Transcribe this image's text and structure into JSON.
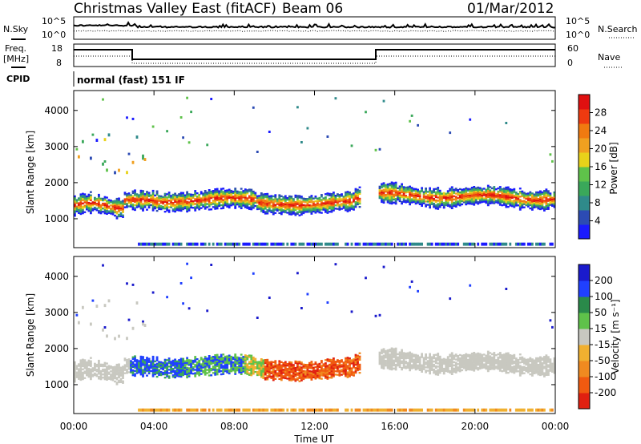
{
  "header": {
    "title": "Christmas Valley East (fitACF)",
    "beam": "Beam 06",
    "date": "01/Mar/2012"
  },
  "panels": {
    "nsky": {
      "left_label": "N.Sky",
      "right_label": "N.Search",
      "left_ticks": [
        "10^5",
        "10^0"
      ],
      "right_ticks": [
        "10^5",
        "10^0"
      ]
    },
    "freq": {
      "left_label_1": "Freq.",
      "left_label_2": "[MHz]",
      "right_label": "Nave",
      "left_ticks": [
        "18",
        "8"
      ],
      "right_ticks": [
        "60",
        "0"
      ]
    },
    "cpid": {
      "label": "CPID",
      "text": "normal (fast) 151 IF"
    }
  },
  "chart_data": [
    {
      "type": "heatmap",
      "name": "power",
      "ylabel": "Slant Range [km]",
      "xlabel": "Time UT",
      "x_ticks": [
        "00:00",
        "04:00",
        "08:00",
        "12:00",
        "16:00",
        "20:00",
        "00:00"
      ],
      "y_ticks": [
        1000,
        2000,
        3000,
        4000
      ],
      "ylim": [
        200,
        4550
      ],
      "xlim_hours": [
        0,
        24
      ],
      "colorbar": {
        "label": "Power [dB]",
        "ticks": [
          4,
          8,
          12,
          16,
          20,
          24,
          28
        ],
        "range": [
          0,
          32
        ],
        "colors": [
          "#1a1aff",
          "#2c4bb3",
          "#2f8a8a",
          "#3aa85a",
          "#5fc24a",
          "#e8d21a",
          "#f0a020",
          "#f07a10",
          "#ee3a10",
          "#e01010"
        ]
      }
    },
    {
      "type": "heatmap",
      "name": "velocity",
      "ylabel": "Slant Range [km]",
      "xlabel": "Time UT",
      "x_ticks": [
        "00:00",
        "04:00",
        "08:00",
        "12:00",
        "16:00",
        "20:00",
        "00:00"
      ],
      "y_ticks": [
        1000,
        2000,
        3000,
        4000
      ],
      "ylim": [
        200,
        4550
      ],
      "xlim_hours": [
        0,
        24
      ],
      "colorbar": {
        "label": "Velocity [m s⁻¹]",
        "ticks": [
          200,
          100,
          50,
          15,
          -15,
          -50,
          -100,
          -200
        ],
        "colors": [
          "#1a1acc",
          "#2040ff",
          "#2a8a4a",
          "#5fc24a",
          "#c8c8c0",
          "#f0b030",
          "#f08a20",
          "#f05a10",
          "#e02010"
        ],
        "ground_scatter_color": "#c8c8c0"
      }
    }
  ],
  "x_axis_title": "Time UT"
}
